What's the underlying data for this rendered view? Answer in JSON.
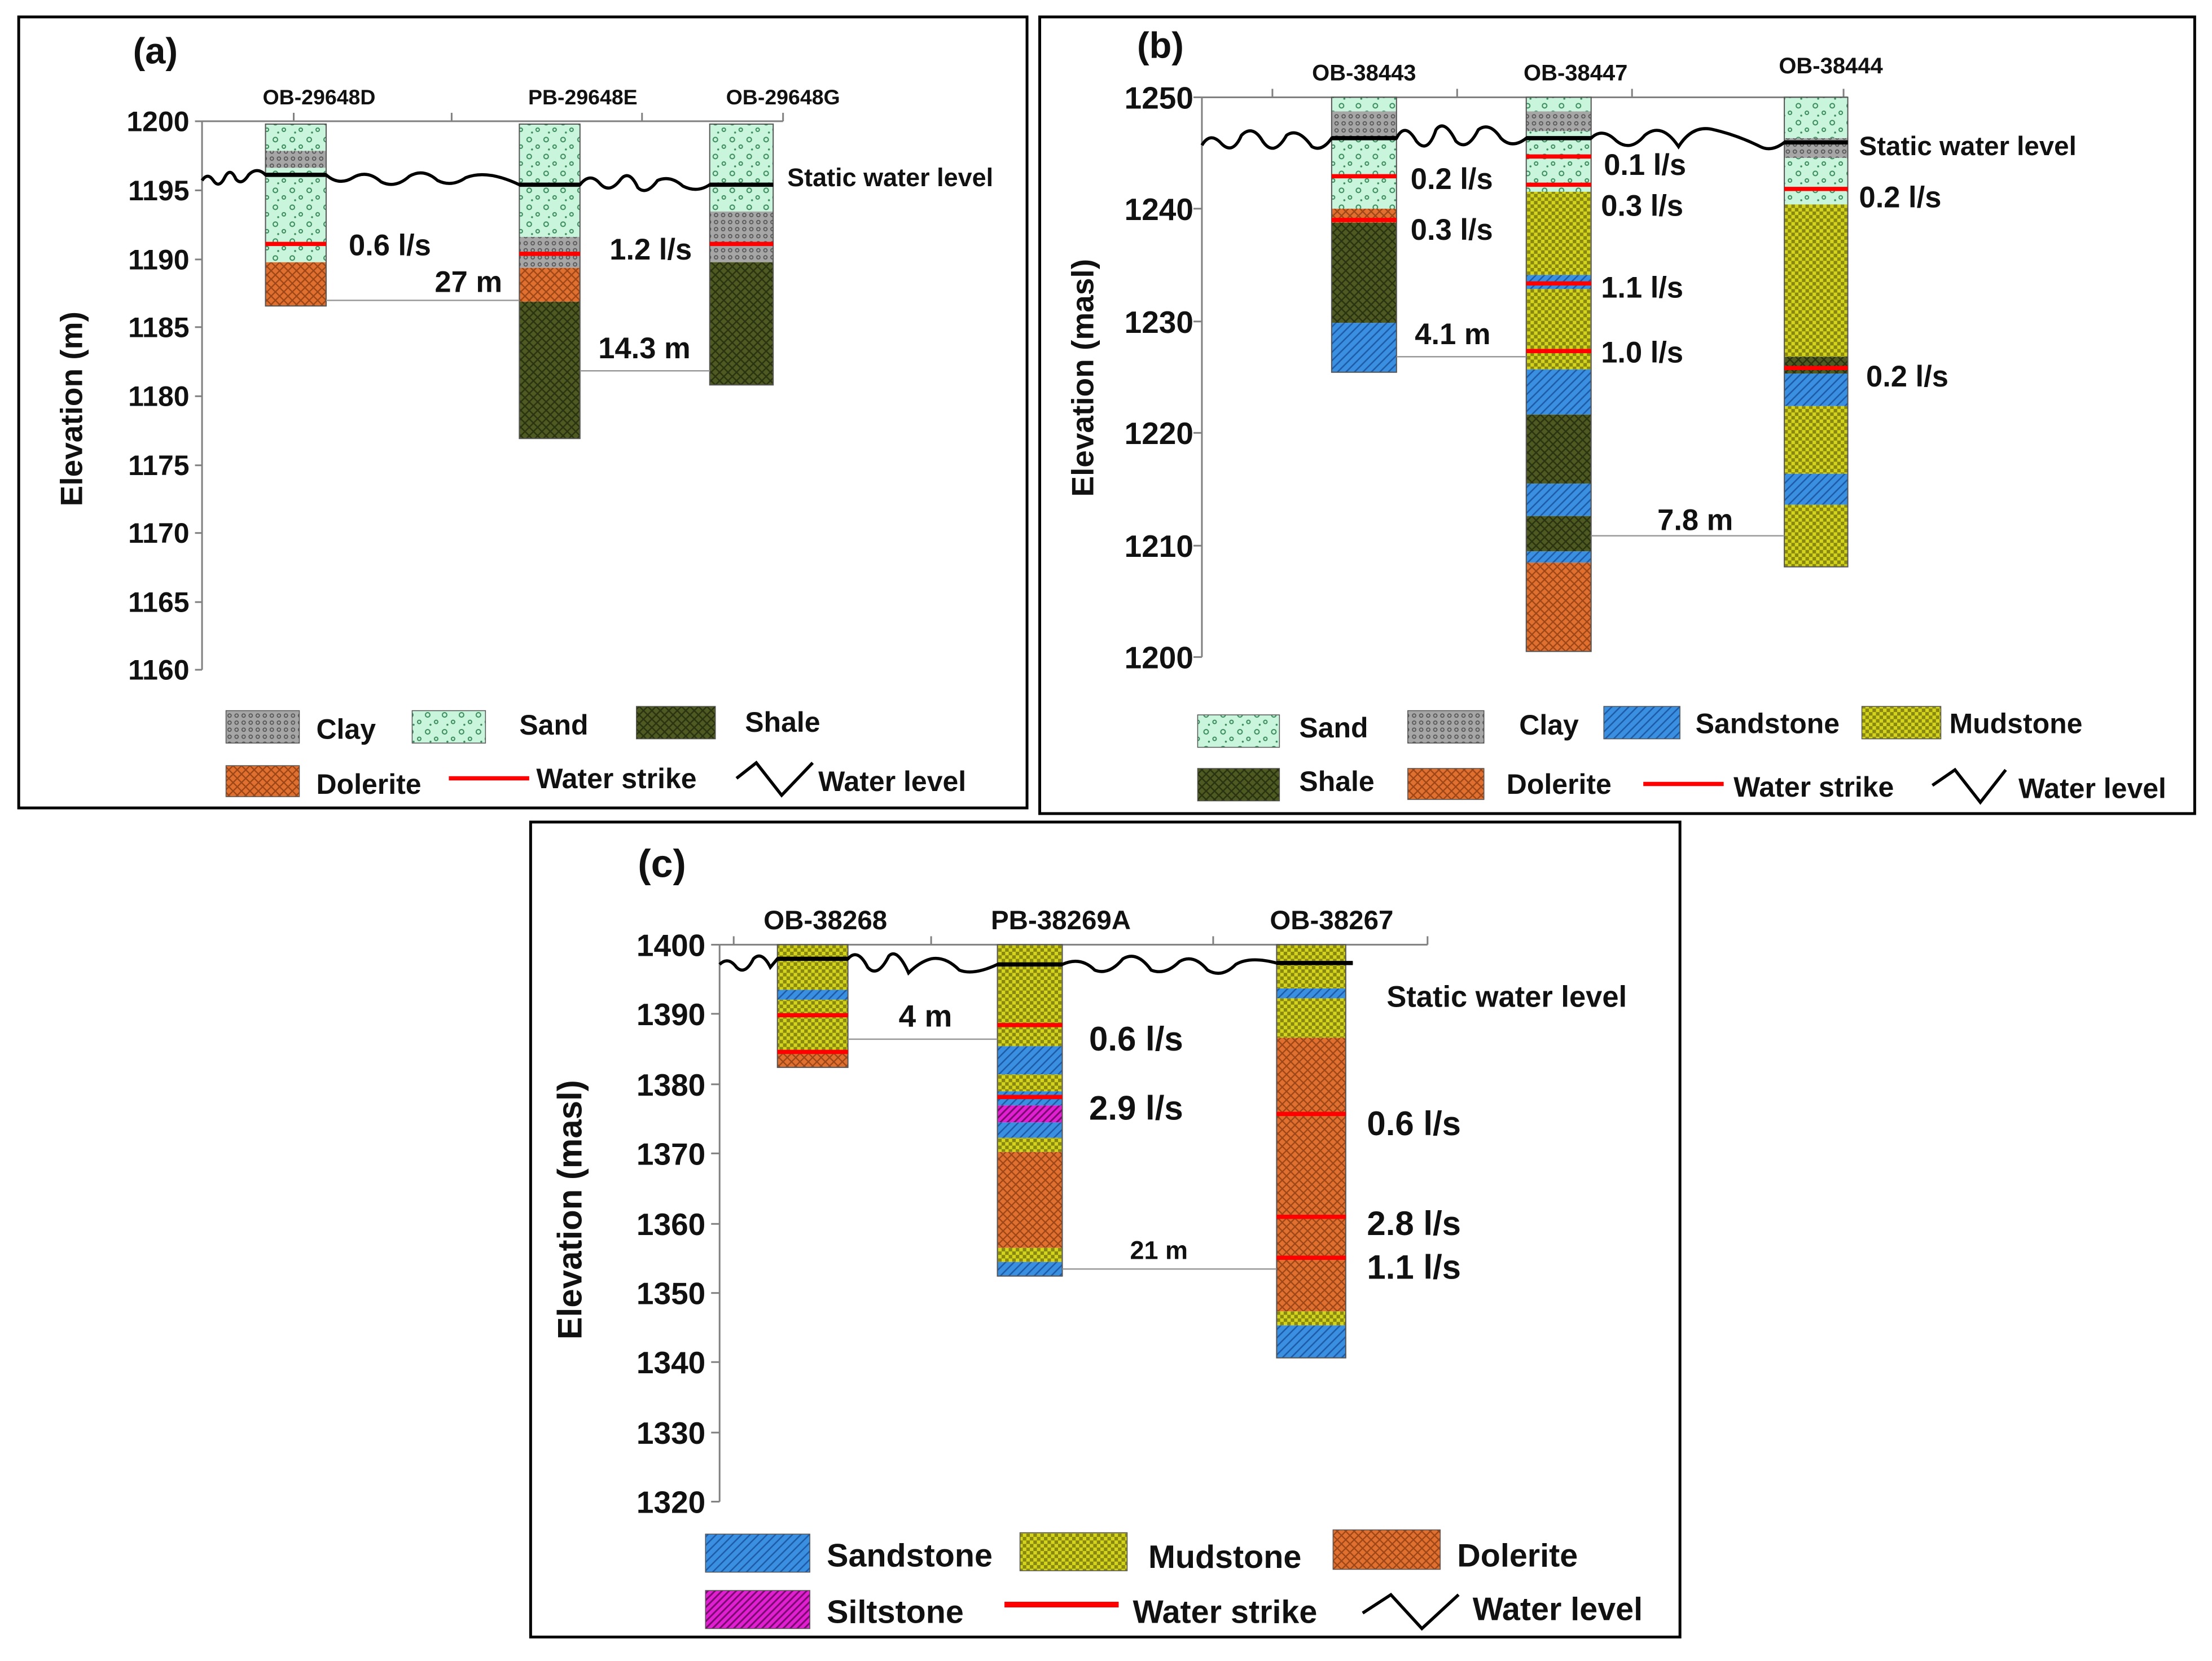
{
  "colors": {
    "sand_bg": "#c8f5dc",
    "sand_dot": "#3a8a5a",
    "clay_bg": "#a6a6a6",
    "clay_dot": "#555555",
    "shale_bg": "#4e5a22",
    "shale_line": "#2a3310",
    "sandstone_bg": "#3a8fe0",
    "sandstone_line": "#1c5aa6",
    "mudstone_bg": "#d4d41e",
    "mudstone_line": "#6e6e0a",
    "dolerite_bg": "#e07030",
    "dolerite_line": "#9c4516",
    "siltstone_bg": "#e020d0",
    "siltstone_line": "#7a0a70",
    "water_strike": "#ff0000",
    "water_level": "#000000",
    "frame": "#000000",
    "axis": "#808080"
  },
  "panels": [
    {
      "id": "a",
      "label": "(a)",
      "y_label": "Elevation (m)",
      "y_ticks": [
        "1200",
        "1195",
        "1190",
        "1185",
        "1180",
        "1175",
        "1170",
        "1165",
        "1160"
      ],
      "static_label": "Static water level",
      "boreholes": [
        "OB-29648D",
        "PB-29648E",
        "OB-29648G"
      ],
      "strikes": [
        "0.6 l/s",
        "1.2 l/s"
      ],
      "distances": [
        "27 m",
        "14.3 m"
      ],
      "legend": [
        {
          "key": "clay",
          "label": "Clay"
        },
        {
          "key": "sand",
          "label": "Sand"
        },
        {
          "key": "shale",
          "label": "Shale"
        },
        {
          "key": "dolerite",
          "label": "Dolerite"
        },
        {
          "key": "strike",
          "label": "Water strike"
        },
        {
          "key": "level",
          "label": "Water level"
        }
      ]
    },
    {
      "id": "b",
      "label": "(b)",
      "y_label": "Elevation (masl)",
      "y_ticks": [
        "1250",
        "1240",
        "1230",
        "1220",
        "1210",
        "1200"
      ],
      "static_label": "Static water level",
      "boreholes": [
        "OB-38443",
        "OB-38447",
        "OB-38444"
      ],
      "strikes": [
        "0.2 l/s",
        "0.3 l/s",
        "0.1 l/s",
        "0.3 l/s",
        "1.1 l/s",
        "1.0 l/s",
        "0.2 l/s",
        "0.2 l/s"
      ],
      "distances": [
        "4.1 m",
        "7.8 m"
      ],
      "legend": [
        {
          "key": "sand",
          "label": "Sand"
        },
        {
          "key": "clay",
          "label": "Clay"
        },
        {
          "key": "sandstone",
          "label": "Sandstone"
        },
        {
          "key": "mudstone",
          "label": "Mudstone"
        },
        {
          "key": "shale",
          "label": "Shale"
        },
        {
          "key": "dolerite",
          "label": "Dolerite"
        },
        {
          "key": "strike",
          "label": "Water strike"
        },
        {
          "key": "level",
          "label": "Water level"
        }
      ]
    },
    {
      "id": "c",
      "label": "(c)",
      "y_label": "Elevation (masl)",
      "y_ticks": [
        "1400",
        "1390",
        "1380",
        "1370",
        "1360",
        "1350",
        "1340",
        "1330",
        "1320"
      ],
      "static_label": "Static water level",
      "boreholes": [
        "OB-38268",
        "PB-38269A",
        "OB-38267"
      ],
      "strikes": [
        "0.6 l/s",
        "2.9 l/s",
        "0.6 l/s",
        "2.8 l/s",
        "1.1 l/s"
      ],
      "distances": [
        "4 m",
        "21 m"
      ],
      "legend": [
        {
          "key": "sandstone",
          "label": "Sandstone"
        },
        {
          "key": "mudstone",
          "label": "Mudstone"
        },
        {
          "key": "dolerite",
          "label": "Dolerite"
        },
        {
          "key": "siltstone",
          "label": "Siltstone"
        },
        {
          "key": "strike",
          "label": "Water strike"
        },
        {
          "key": "level",
          "label": "Water level"
        }
      ]
    }
  ]
}
